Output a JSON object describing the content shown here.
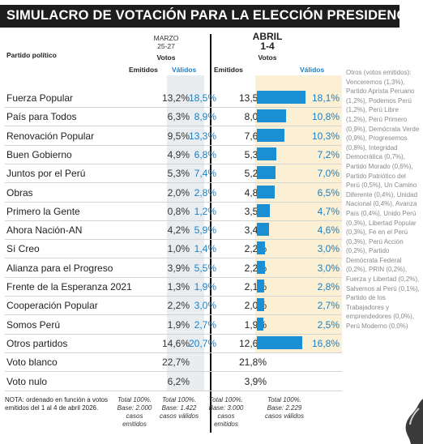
{
  "title": "SIMULACRO DE VOTACIÓN PARA LA ELECCIÓN PRESIDENCIAL",
  "header": {
    "party_label": "Partido político",
    "march_label": "MARZO",
    "march_dates": "25-27",
    "april_label": "ABRIL",
    "april_dates": "1-4",
    "votos": "Votos",
    "emitidos": "Emitidos",
    "validos": "Válidos"
  },
  "rows": [
    {
      "party": "Fuerza Popular",
      "mar_emitidos": "13,2%",
      "mar_validos": "18,5%",
      "abr_emitidos": "13,5%",
      "abr_validos": "18,1%",
      "abr_validos_value": 18.1
    },
    {
      "party": "País para Todos",
      "mar_emitidos": "6,3%",
      "mar_validos": "8,9%",
      "abr_emitidos": "8,0%",
      "abr_validos": "10,8%",
      "abr_validos_value": 10.8
    },
    {
      "party": "Renovación Popular",
      "mar_emitidos": "9,5%",
      "mar_validos": "13,3%",
      "abr_emitidos": "7,6%",
      "abr_validos": "10,3%",
      "abr_validos_value": 10.3
    },
    {
      "party": "Buen Gobierno",
      "mar_emitidos": "4,9%",
      "mar_validos": "6,8%",
      "abr_emitidos": "5,3%",
      "abr_validos": "7,2%",
      "abr_validos_value": 7.2
    },
    {
      "party": "Juntos por el Perú",
      "mar_emitidos": "5,3%",
      "mar_validos": "7,4%",
      "abr_emitidos": "5,2%",
      "abr_validos": "7,0%",
      "abr_validos_value": 7.0
    },
    {
      "party": "Obras",
      "mar_emitidos": "2,0%",
      "mar_validos": "2,8%",
      "abr_emitidos": "4,8%",
      "abr_validos": "6,5%",
      "abr_validos_value": 6.5
    },
    {
      "party": "Primero la Gente",
      "mar_emitidos": "0,8%",
      "mar_validos": "1,2%",
      "abr_emitidos": "3,5%",
      "abr_validos": "4,7%",
      "abr_validos_value": 4.7
    },
    {
      "party": "Ahora Nación-AN",
      "mar_emitidos": "4,2%",
      "mar_validos": "5,9%",
      "abr_emitidos": "3,4%",
      "abr_validos": "4,6%",
      "abr_validos_value": 4.6
    },
    {
      "party": "Sí Creo",
      "mar_emitidos": "1,0%",
      "mar_validos": "1,4%",
      "abr_emitidos": "2,2%",
      "abr_validos": "3,0%",
      "abr_validos_value": 3.0
    },
    {
      "party": "Alianza para el Progreso",
      "mar_emitidos": "3,9%",
      "mar_validos": "5,5%",
      "abr_emitidos": "2,2%",
      "abr_validos": "3,0%",
      "abr_validos_value": 3.0
    },
    {
      "party": "Frente de la Esperanza 2021",
      "mar_emitidos": "1,3%",
      "mar_validos": "1,9%",
      "abr_emitidos": "2,1%",
      "abr_validos": "2,8%",
      "abr_validos_value": 2.8
    },
    {
      "party": "Cooperación Popular",
      "mar_emitidos": "2,2%",
      "mar_validos": "3,0%",
      "abr_emitidos": "2,0%",
      "abr_validos": "2,7%",
      "abr_validos_value": 2.7
    },
    {
      "party": "Somos Perú",
      "mar_emitidos": "1,9%",
      "mar_validos": "2,7%",
      "abr_emitidos": "1,9%",
      "abr_validos": "2,5%",
      "abr_validos_value": 2.5
    },
    {
      "party": "Otros partidos",
      "mar_emitidos": "14,6%",
      "mar_validos": "20,7%",
      "abr_emitidos": "12,6%",
      "abr_validos": "16,8%",
      "abr_validos_value": 16.8
    },
    {
      "party": "Voto blanco",
      "mar_emitidos": "22,7%",
      "mar_validos": "",
      "abr_emitidos": "21,8%",
      "abr_validos": "",
      "abr_validos_value": 0
    },
    {
      "party": "Voto nulo",
      "mar_emitidos": "6,2%",
      "mar_validos": "",
      "abr_emitidos": "3,9%",
      "abr_validos": "",
      "abr_validos_value": 0
    }
  ],
  "footer": {
    "note": "NOTA: ordenado en función a votos emitidos del 1 al 4 de abril 2026.",
    "mar_emitidos": "Total 100%. Base: 2.000 casos emitidos",
    "mar_validos": "Total 100%. Base: 1.422 casos válidos",
    "abr_emitidos": "Total 100%. Base: 3.000 casos emitidos",
    "abr_validos": "Total 100%. Base: 2.229 casos válidos"
  },
  "side_note": "Otros (votos emitidos): Venceremos (1,3%), Partido Aprista Peruano (1,2%), Podemos Perú (1,2%), Perú Libre (1,2%), Perú Primero (0,9%), Demócrata Verde (0,9%), Progresemos (0,8%), Integridad Democrática (0,7%), Partido Morado (0,6%), Partido Patriótico del Perú (0,5%), Un Camino Diferente (0,4%), Unidad Nacional (0,4%), Avanza País (0,4%), Unido Perú (0,3%), Libertad Popular (0,3%), Fe en el Perú (0,3%), Perú Acción (0,2%), Partido Demócrata Federal (0,2%), PRIN (0,2%), Fuerza y Libertad (0,2%), Salvemos al Perú (0,1%), Partido de los Trabajadores y emprendedores (0,0%), Perú Moderno (0,0%)",
  "colors": {
    "bar": "#1a8fd4",
    "valid_text": "#1a7fc4",
    "title_bg": "#1d1d1d",
    "april_shade": "#fbefd4",
    "march_shade": "#e9edf0"
  }
}
